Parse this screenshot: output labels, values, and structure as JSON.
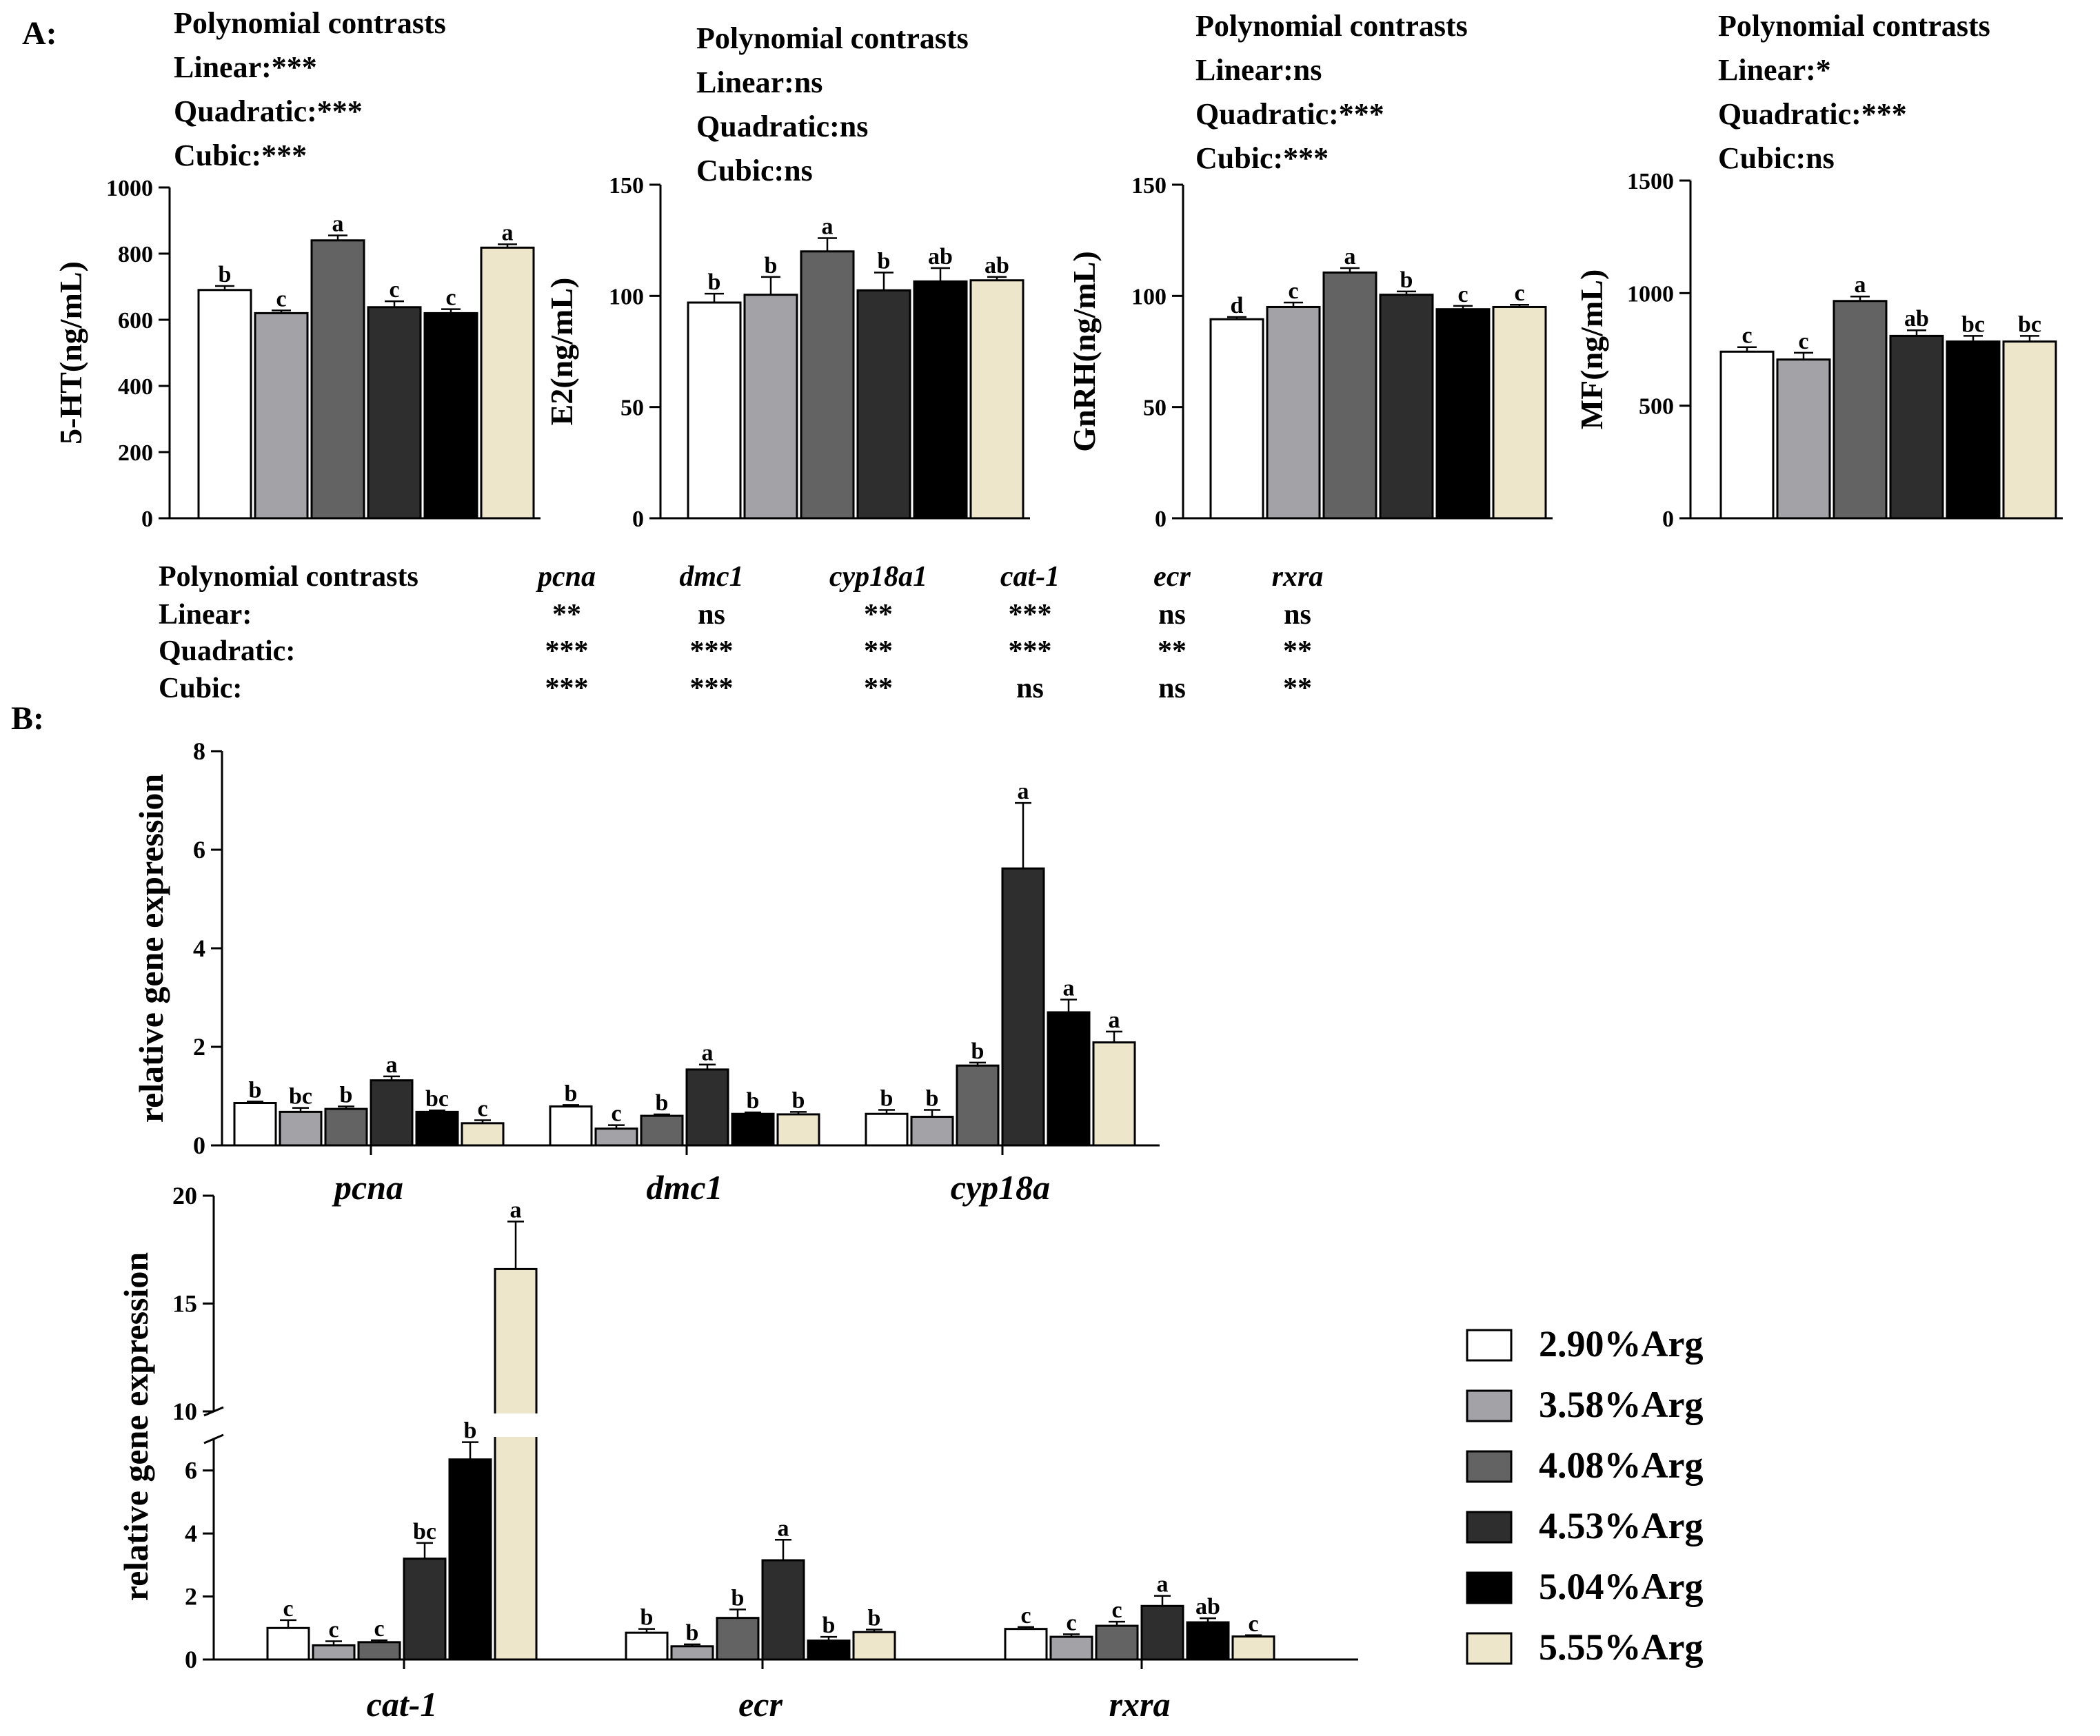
{
  "labels": {
    "panel_a": "A:",
    "panel_b": "B:"
  },
  "colors": {
    "g1": "#ffffff",
    "g2": "#a3a2a6",
    "g3": "#636363",
    "g4": "#2e2e2e",
    "g5": "#000000",
    "g6": "#ede6cb",
    "stroke": "#000000"
  },
  "legend": {
    "items": [
      "2.90%Arg",
      "3.58%Arg",
      "4.08%Arg",
      "4.53%Arg",
      "5.04%Arg",
      "5.55%Arg"
    ]
  },
  "gene_contrasts": {
    "header": "Polynomial contrasts",
    "genes": [
      "pcna",
      "dmc1",
      "cyp18a1",
      "cat-1",
      "ecr",
      "rxra"
    ],
    "rows": [
      {
        "label": "Linear:",
        "values": [
          "**",
          "ns",
          "**",
          "***",
          "ns",
          "ns"
        ]
      },
      {
        "label": "Quadratic:",
        "values": [
          "***",
          "***",
          "**",
          "***",
          "**",
          "**"
        ]
      },
      {
        "label": "Cubic:",
        "values": [
          "***",
          "***",
          "**",
          "ns",
          "ns",
          "**"
        ]
      }
    ]
  },
  "chart_data": [
    {
      "type": "bar",
      "id": "5ht",
      "ylabel": "5-HT(ng/mL)",
      "ylim": [
        0,
        1000
      ],
      "yticks": [
        0,
        200,
        400,
        600,
        800,
        1000
      ],
      "contrasts": [
        "Polynomial contrasts",
        "Linear:***",
        "Quadratic:***",
        "Cubic:***"
      ],
      "categories": [
        "2.90%Arg",
        "3.58%Arg",
        "4.08%Arg",
        "4.53%Arg",
        "5.04%Arg",
        "5.55%Arg"
      ],
      "values": [
        690,
        620,
        840,
        638,
        620,
        818
      ],
      "errors": [
        12,
        8,
        15,
        18,
        12,
        10
      ],
      "letters": [
        "b",
        "c",
        "a",
        "c",
        "c",
        "a"
      ]
    },
    {
      "type": "bar",
      "id": "e2",
      "ylabel": "E2(ng/mL)",
      "ylim": [
        0,
        150
      ],
      "yticks": [
        0,
        50,
        100,
        150
      ],
      "contrasts": [
        "Polynomial contrasts",
        "Linear:ns",
        "Quadratic:ns",
        "Cubic:ns"
      ],
      "categories": [
        "2.90%Arg",
        "3.58%Arg",
        "4.08%Arg",
        "4.53%Arg",
        "5.04%Arg",
        "5.55%Arg"
      ],
      "values": [
        97,
        100.5,
        120,
        102.5,
        106.5,
        107
      ],
      "errors": [
        4,
        8,
        6,
        8,
        6,
        1.5
      ],
      "letters": [
        "b",
        "b",
        "a",
        "b",
        "ab",
        "ab"
      ]
    },
    {
      "type": "bar",
      "id": "gnrh",
      "ylabel": "GnRH(ng/mL)",
      "ylim": [
        0,
        150
      ],
      "yticks": [
        0,
        50,
        100,
        150
      ],
      "contrasts": [
        "Polynomial contrasts",
        "Linear:ns",
        "Quadratic:***",
        "Cubic:***"
      ],
      "categories": [
        "2.90%Arg",
        "3.58%Arg",
        "4.08%Arg",
        "4.53%Arg",
        "5.04%Arg",
        "5.55%Arg"
      ],
      "values": [
        89.5,
        95,
        110.5,
        100.5,
        94,
        95
      ],
      "errors": [
        1,
        2,
        2,
        1.5,
        1.5,
        1
      ],
      "letters": [
        "d",
        "c",
        "a",
        "b",
        "c",
        "c"
      ]
    },
    {
      "type": "bar",
      "id": "mf",
      "ylabel": "MF(ng/mL)",
      "ylim": [
        0,
        1500
      ],
      "yticks": [
        0,
        500,
        1000,
        1500
      ],
      "contrasts": [
        "Polynomial contrasts",
        "Linear:*",
        "Quadratic:***",
        "Cubic:ns"
      ],
      "categories": [
        "2.90%Arg",
        "3.58%Arg",
        "4.08%Arg",
        "4.53%Arg",
        "5.04%Arg",
        "5.55%Arg"
      ],
      "values": [
        740,
        705,
        965,
        810,
        785,
        785
      ],
      "errors": [
        20,
        30,
        20,
        25,
        25,
        25
      ],
      "letters": [
        "c",
        "c",
        "a",
        "ab",
        "bc",
        "bc"
      ]
    },
    {
      "type": "bar",
      "id": "genes1",
      "ylabel": "relative gene expression",
      "ylim": [
        0,
        8
      ],
      "yticks": [
        0,
        2,
        4,
        6,
        8
      ],
      "groups": [
        "pcna",
        "dmc1",
        "cyp18a"
      ],
      "series": [
        {
          "name": "2.90%Arg",
          "values": [
            0.86,
            0.79,
            0.64
          ],
          "errors": [
            0.03,
            0.03,
            0.08
          ],
          "letters": [
            "b",
            "b",
            "b"
          ]
        },
        {
          "name": "3.58%Arg",
          "values": [
            0.68,
            0.34,
            0.58
          ],
          "errors": [
            0.08,
            0.07,
            0.14
          ],
          "letters": [
            "bc",
            "c",
            "b"
          ]
        },
        {
          "name": "4.08%Arg",
          "values": [
            0.74,
            0.6,
            1.62
          ],
          "errors": [
            0.05,
            0.03,
            0.06
          ],
          "letters": [
            "b",
            "b",
            "b"
          ]
        },
        {
          "name": "4.53%Arg",
          "values": [
            1.32,
            1.54,
            5.62
          ],
          "errors": [
            0.08,
            0.1,
            1.33
          ],
          "letters": [
            "a",
            "a",
            "a"
          ]
        },
        {
          "name": "5.04%Arg",
          "values": [
            0.68,
            0.64,
            2.7
          ],
          "errors": [
            0.03,
            0.03,
            0.26
          ],
          "letters": [
            "bc",
            "b",
            "a"
          ]
        },
        {
          "name": "5.55%Arg",
          "values": [
            0.45,
            0.63,
            2.09
          ],
          "errors": [
            0.06,
            0.05,
            0.22
          ],
          "letters": [
            "c",
            "b",
            "a"
          ]
        }
      ]
    },
    {
      "type": "bar",
      "id": "genes2",
      "ylabel": "relative gene expression",
      "axis_break": {
        "lower": [
          0,
          7
        ],
        "upper": [
          10,
          20
        ]
      },
      "yticks": [
        0,
        2,
        4,
        6,
        10,
        15,
        20
      ],
      "groups": [
        "cat-1",
        "ecr",
        "rxra"
      ],
      "series": [
        {
          "name": "2.90%Arg",
          "values": [
            1.0,
            0.85,
            0.97
          ],
          "errors": [
            0.25,
            0.12,
            0.06
          ],
          "letters": [
            "c",
            "b",
            "c"
          ]
        },
        {
          "name": "3.58%Arg",
          "values": [
            0.45,
            0.42,
            0.72
          ],
          "errors": [
            0.13,
            0.06,
            0.08
          ],
          "letters": [
            "c",
            "b",
            "c"
          ]
        },
        {
          "name": "4.08%Arg",
          "values": [
            0.55,
            1.32,
            1.07
          ],
          "errors": [
            0.06,
            0.27,
            0.13
          ],
          "letters": [
            "c",
            "b",
            "c"
          ]
        },
        {
          "name": "4.53%Arg",
          "values": [
            3.2,
            3.15,
            1.7
          ],
          "errors": [
            0.5,
            0.65,
            0.32
          ],
          "letters": [
            "bc",
            "a",
            "a"
          ]
        },
        {
          "name": "5.04%Arg",
          "values": [
            6.35,
            0.6,
            1.18
          ],
          "errors": [
            0.55,
            0.12,
            0.13
          ],
          "letters": [
            "b",
            "b",
            "ab"
          ]
        },
        {
          "name": "5.55%Arg",
          "values": [
            16.6,
            0.87,
            0.73
          ],
          "errors": [
            2.2,
            0.08,
            0.04
          ],
          "letters": [
            "a",
            "b",
            "c"
          ]
        }
      ]
    }
  ]
}
